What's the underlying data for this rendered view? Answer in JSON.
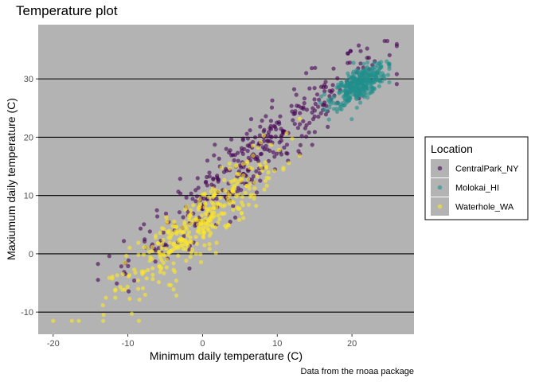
{
  "chart_data": {
    "type": "scatter",
    "title": "Temperature plot",
    "xlabel": "Minimum daily temperature (C)",
    "ylabel": "Maxiumum daily temperature (C)",
    "caption": "Data from the rnoaa package",
    "xlim": [
      -22,
      28.3
    ],
    "ylim": [
      -13.8,
      39.3
    ],
    "x_ticks": [
      -20,
      -10,
      0,
      10,
      20
    ],
    "y_ticks": [
      -10,
      0,
      10,
      20,
      30
    ],
    "grid": "major horizontal lines only",
    "panel_background": "#b3b3b3",
    "gridline_color": "#000000",
    "point_alpha": 0.6,
    "legend": {
      "title": "Location",
      "placement": "right",
      "entries": [
        "CentralPark_NY",
        "Molokai_HI",
        "Waterhole_WA"
      ]
    },
    "series": [
      {
        "name": "CentralPark_NY",
        "color": "#440154",
        "x_range": [
          -14,
          26
        ],
        "y_range": [
          -9.5,
          36.5
        ],
        "trend_slope": 1.05,
        "trend_intercept": 9.5
      },
      {
        "name": "Molokai_HI",
        "color": "#21908c",
        "x_range": [
          15,
          25
        ],
        "y_range": [
          23,
          33
        ],
        "center": [
          21,
          29
        ]
      },
      {
        "name": "Waterhole_WA",
        "color": "#fde725",
        "x_range": [
          -20,
          13
        ],
        "y_range": [
          -11.5,
          27
        ],
        "trend_slope": 1.1,
        "trend_intercept": 5.5
      }
    ]
  }
}
